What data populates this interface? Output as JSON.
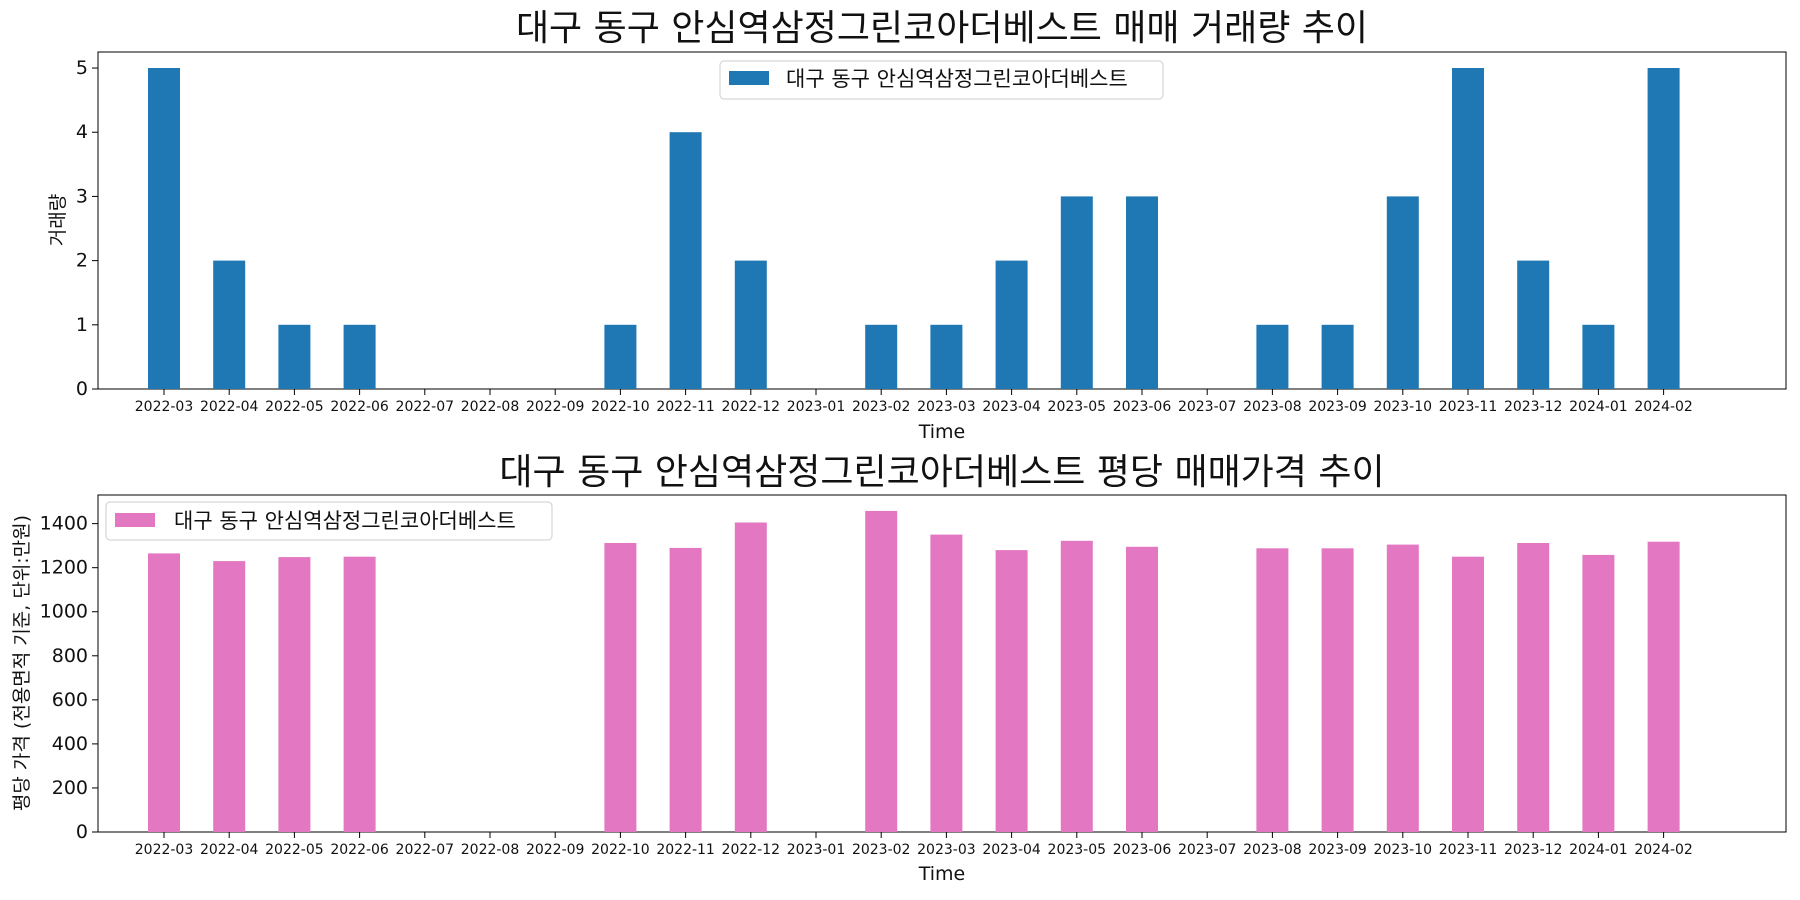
{
  "chart_data": [
    {
      "type": "bar",
      "title": "대구 동구 안심역삼정그린코아더베스트 매매 거래량 추이",
      "xlabel": "Time",
      "ylabel": "거래량",
      "ylim": [
        0,
        5.25
      ],
      "yticks": [
        0,
        1,
        2,
        3,
        4,
        5
      ],
      "legend_position": "top-center",
      "grid": false,
      "categories": [
        "2022-03",
        "2022-04",
        "2022-05",
        "2022-06",
        "2022-07",
        "2022-08",
        "2022-09",
        "2022-10",
        "2022-11",
        "2022-12",
        "2023-01",
        "2023-02",
        "2023-03",
        "2023-04",
        "2023-05",
        "2023-06",
        "2023-07",
        "2023-08",
        "2023-09",
        "2023-10",
        "2023-11",
        "2023-12",
        "2024-01",
        "2024-02"
      ],
      "series": [
        {
          "name": "대구 동구 안심역삼정그린코아더베스트",
          "color": "#1f77b4",
          "values": [
            5,
            2,
            1,
            1,
            0,
            0,
            0,
            1,
            4,
            2,
            0,
            1,
            1,
            2,
            3,
            3,
            0,
            1,
            1,
            3,
            5,
            2,
            1,
            5
          ]
        }
      ]
    },
    {
      "type": "bar",
      "title": "대구 동구 안심역삼정그린코아더베스트 평당 매매가격 추이",
      "xlabel": "Time",
      "ylabel": "평당 가격 (전용면적 기준, 단위:만원)",
      "ylim": [
        0,
        1530
      ],
      "yticks": [
        0,
        200,
        400,
        600,
        800,
        1000,
        1200,
        1400
      ],
      "legend_position": "top-left",
      "grid": false,
      "categories": [
        "2022-03",
        "2022-04",
        "2022-05",
        "2022-06",
        "2022-07",
        "2022-08",
        "2022-09",
        "2022-10",
        "2022-11",
        "2022-12",
        "2023-01",
        "2023-02",
        "2023-03",
        "2023-04",
        "2023-05",
        "2023-06",
        "2023-07",
        "2023-08",
        "2023-09",
        "2023-10",
        "2023-11",
        "2023-12",
        "2024-01",
        "2024-02"
      ],
      "series": [
        {
          "name": "대구 동구 안심역삼정그린코아더베스트",
          "color": "#e377c2",
          "values": [
            1265,
            1230,
            1248,
            1250,
            0,
            0,
            0,
            1312,
            1290,
            1405,
            0,
            1458,
            1350,
            1280,
            1322,
            1295,
            0,
            1288,
            1288,
            1305,
            1250,
            1312,
            1258,
            1318
          ]
        }
      ]
    }
  ]
}
